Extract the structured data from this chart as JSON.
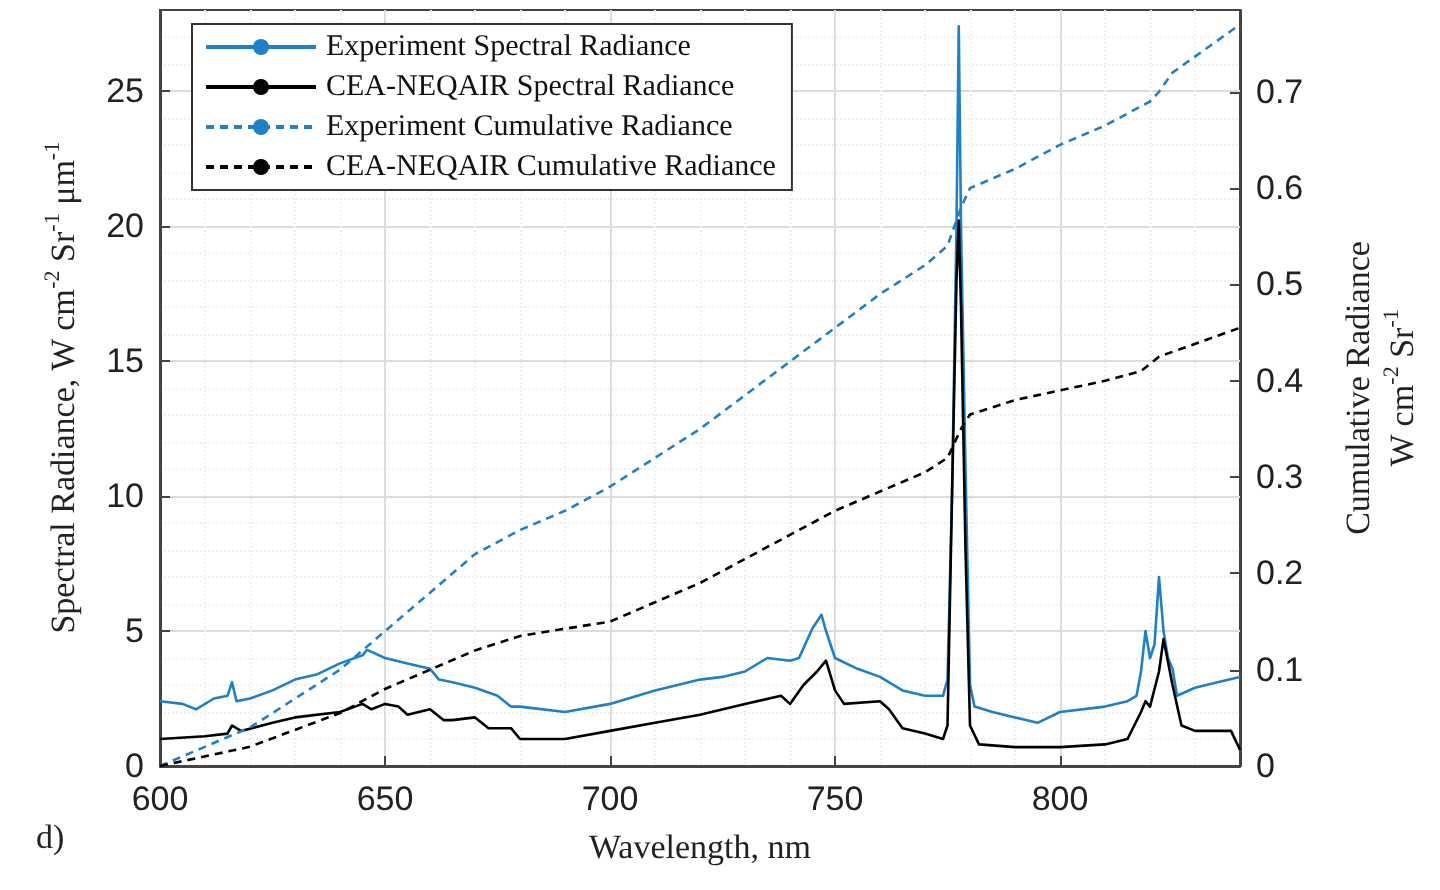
{
  "chart_data": {
    "type": "line",
    "xlabel": "Wavelength, nm",
    "ylabel": "Spectral Radiance, W cm$^{-2}$ Sr$^{-1}$ μm$^{-1}$",
    "y2label": "Cumulative Radiance\nW cm$^{-2}$ Sr$^{-1}$",
    "annotations": [
      "d)"
    ],
    "xlim": [
      600,
      840
    ],
    "xticks": [
      600,
      650,
      700,
      750,
      800
    ],
    "ylim": [
      0,
      28
    ],
    "yticks": [
      0,
      5,
      10,
      15,
      20,
      25
    ],
    "y2lim": [
      0,
      0.785
    ],
    "y2ticks": [
      0,
      0.1,
      0.2,
      0.3,
      0.4,
      0.5,
      0.6,
      0.7
    ],
    "grid": true,
    "legend": "top left",
    "marker": "none",
    "series": [
      {
        "name": "Experiment Spectral Radiance",
        "color": "#1f80c8",
        "line_style": "solid",
        "x": [
          600,
          605,
          608,
          612,
          615,
          616,
          617,
          620,
          625,
          630,
          635,
          640,
          645,
          646,
          650,
          655,
          660,
          662,
          665,
          670,
          675,
          678,
          680,
          690,
          700,
          710,
          720,
          725,
          730,
          735,
          740,
          742,
          745,
          747,
          748,
          750,
          755,
          760,
          765,
          770,
          774,
          775,
          776,
          777,
          777.5,
          778,
          779,
          780,
          781,
          785,
          790,
          795,
          800,
          810,
          815,
          817,
          818,
          819,
          820,
          821,
          822,
          823,
          824,
          825,
          826,
          830,
          835,
          840
        ],
        "values": [
          2.4,
          2.3,
          2.1,
          2.5,
          2.6,
          3.1,
          2.4,
          2.5,
          2.8,
          3.2,
          3.4,
          3.8,
          4.1,
          4.3,
          4.0,
          3.8,
          3.6,
          3.2,
          3.1,
          2.9,
          2.6,
          2.2,
          2.2,
          2.0,
          2.3,
          2.8,
          3.2,
          3.3,
          3.5,
          4.0,
          3.9,
          4.0,
          5.1,
          5.6,
          5.0,
          4.0,
          3.6,
          3.3,
          2.8,
          2.6,
          2.6,
          3.2,
          10,
          20,
          27.4,
          20,
          11,
          3,
          2.2,
          2.0,
          1.8,
          1.6,
          2.0,
          2.2,
          2.4,
          2.6,
          3.5,
          5.0,
          4.0,
          4.5,
          7.0,
          5.0,
          4.0,
          3.6,
          2.6,
          2.9,
          3.1,
          3.3
        ]
      },
      {
        "name": "CEA-NEQAIR Spectral Radiance",
        "color": "#000000",
        "line_style": "solid",
        "x": [
          600,
          610,
          615,
          616,
          618,
          625,
          630,
          640,
          645,
          647,
          650,
          653,
          655,
          660,
          663,
          665,
          670,
          673,
          678,
          680,
          690,
          700,
          710,
          720,
          730,
          738,
          740,
          743,
          746,
          748,
          750,
          752,
          760,
          762,
          765,
          770,
          774,
          775,
          776,
          777,
          777.5,
          778,
          779,
          780,
          782,
          790,
          800,
          810,
          815,
          818,
          819,
          820,
          822,
          823,
          825,
          827,
          830,
          838,
          840
        ],
        "values": [
          1.0,
          1.1,
          1.2,
          1.5,
          1.3,
          1.6,
          1.8,
          2.0,
          2.3,
          2.1,
          2.3,
          2.2,
          1.9,
          2.1,
          1.7,
          1.7,
          1.8,
          1.4,
          1.4,
          1.0,
          1.0,
          1.3,
          1.6,
          1.9,
          2.3,
          2.6,
          2.3,
          3.0,
          3.5,
          3.9,
          2.8,
          2.3,
          2.4,
          2.1,
          1.4,
          1.2,
          1.0,
          1.5,
          10,
          18,
          20.2,
          17,
          8,
          1.5,
          0.8,
          0.7,
          0.7,
          0.8,
          1.0,
          2.0,
          2.4,
          2.2,
          3.5,
          4.7,
          3.0,
          1.5,
          1.3,
          1.3,
          0.6
        ]
      },
      {
        "name": "Experiment Cumulative Radiance",
        "color": "#1f80c8",
        "line_style": "dashed",
        "axis": "y2",
        "x": [
          600,
          620,
          640,
          650,
          660,
          670,
          680,
          690,
          700,
          710,
          720,
          730,
          740,
          750,
          760,
          770,
          775,
          778,
          780,
          790,
          800,
          810,
          820,
          822,
          825,
          840
        ],
        "values": [
          0,
          0.04,
          0.1,
          0.14,
          0.18,
          0.22,
          0.245,
          0.265,
          0.29,
          0.32,
          0.35,
          0.385,
          0.42,
          0.455,
          0.49,
          0.52,
          0.54,
          0.58,
          0.6,
          0.62,
          0.645,
          0.665,
          0.69,
          0.7,
          0.72,
          0.77
        ]
      },
      {
        "name": "CEA-NEQAIR Cumulative Radiance",
        "color": "#000000",
        "line_style": "dashed",
        "axis": "y2",
        "x": [
          600,
          620,
          640,
          650,
          660,
          670,
          680,
          700,
          710,
          720,
          730,
          740,
          750,
          760,
          770,
          775,
          778,
          780,
          790,
          800,
          810,
          818,
          822,
          825,
          840
        ],
        "values": [
          0,
          0.02,
          0.055,
          0.08,
          0.1,
          0.12,
          0.135,
          0.15,
          0.17,
          0.19,
          0.215,
          0.24,
          0.265,
          0.285,
          0.305,
          0.32,
          0.35,
          0.365,
          0.38,
          0.39,
          0.4,
          0.41,
          0.425,
          0.43,
          0.455
        ]
      }
    ]
  }
}
